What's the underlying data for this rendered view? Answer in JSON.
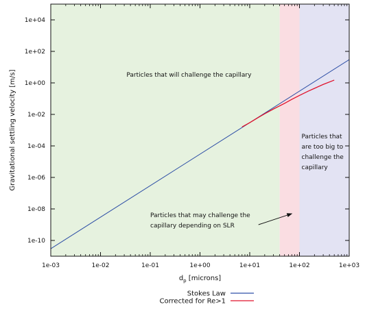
{
  "chart_data": {
    "type": "line",
    "x_scale": "log",
    "y_scale": "log",
    "xlim": [
      0.001,
      1000
    ],
    "ylim": [
      1e-11,
      100000.0
    ],
    "grid": false,
    "legend_position": "bottom",
    "xlabel_base": "d",
    "xlabel_sub": "p",
    "xlabel_rest": " [microns]",
    "ylabel": "Gravitational settling velocity [m/s]",
    "xticks": [
      {
        "value": 0.001,
        "label": "1e-03"
      },
      {
        "value": 0.01,
        "label": "1e-02"
      },
      {
        "value": 0.1,
        "label": "1e-01"
      },
      {
        "value": 1,
        "label": "1e+00"
      },
      {
        "value": 10,
        "label": "1e+01"
      },
      {
        "value": 100,
        "label": "1e+02"
      },
      {
        "value": 1000,
        "label": "1e+03"
      }
    ],
    "yticks": [
      {
        "value": 1e-10,
        "label": "1e-10"
      },
      {
        "value": 1e-08,
        "label": "1e-08"
      },
      {
        "value": 1e-06,
        "label": "1e-06"
      },
      {
        "value": 0.0001,
        "label": "1e-04"
      },
      {
        "value": 0.01,
        "label": "1e-02"
      },
      {
        "value": 1,
        "label": "1e+00"
      },
      {
        "value": 100,
        "label": "1e+02"
      },
      {
        "value": 10000,
        "label": "1e+04"
      }
    ],
    "regions": [
      {
        "x_from": 0.001,
        "x_to": 40,
        "color": "#e6f2df"
      },
      {
        "x_from": 40,
        "x_to": 100,
        "color": "#fadde2"
      },
      {
        "x_from": 100,
        "x_to": 1000,
        "color": "#e3e3f3"
      }
    ],
    "series": [
      {
        "name": "Stokes Law",
        "color": "#2e4fa6",
        "points": [
          [
            0.001,
            3e-11
          ],
          [
            1000,
            30
          ]
        ]
      },
      {
        "name": "Corrected for Re>1",
        "color": "#e0102a",
        "points": [
          [
            7,
            0.0016
          ],
          [
            10,
            0.003
          ],
          [
            15,
            0.0065
          ],
          [
            20,
            0.011
          ],
          [
            30,
            0.022
          ],
          [
            50,
            0.05
          ],
          [
            70,
            0.09
          ],
          [
            100,
            0.16
          ],
          [
            150,
            0.3
          ],
          [
            200,
            0.45
          ],
          [
            300,
            0.8
          ],
          [
            500,
            1.5
          ]
        ]
      }
    ],
    "annotations": [
      {
        "lines": [
          "Particles that will challenge the capillary"
        ],
        "anchor": "middle",
        "x": 0.6,
        "y": 2.5
      },
      {
        "lines": [
          "Particles that may challenge the",
          "capillary depending on SLR"
        ],
        "anchor": "start",
        "x": 0.1,
        "y": 3e-09
      },
      {
        "lines": [
          "Particles that",
          "are too big to",
          "challenge the",
          "capillary"
        ],
        "anchor": "start",
        "x": 110,
        "y": 0.0003
      }
    ],
    "arrow": {
      "from": [
        15,
        1e-09
      ],
      "to": [
        70,
        5e-09
      ]
    }
  }
}
